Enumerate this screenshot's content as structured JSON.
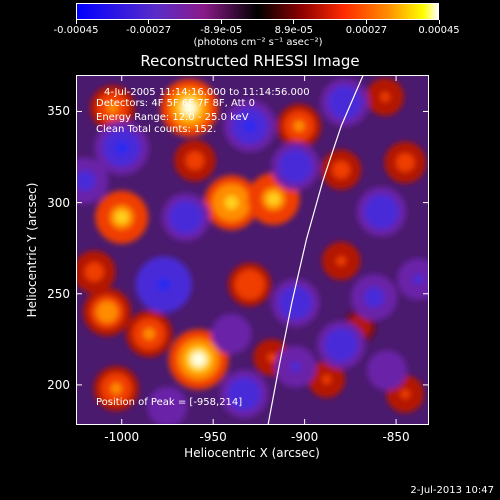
{
  "colorbar": {
    "ticks": [
      "-0.00045",
      "-0.00027",
      "-8.9e-05",
      "8.9e-05",
      "0.00027",
      "0.00045"
    ],
    "units": "(photons cm⁻² s⁻¹ asec⁻²)",
    "colors": [
      "#0000ff",
      "#8a1a8a",
      "#000000",
      "#ff2a00",
      "#ffff00",
      "#ffffff"
    ]
  },
  "info": {
    "time_range": "4-Jul-2005 11:14:16.000 to 11:14:56.000",
    "detectors": "Detectors: 4F 5F 6F 7F 8F, Att 0",
    "energy": "Energy Range: 12.0 - 25.0 keV",
    "clean": "Clean    Total counts: 152.",
    "peak": "Position of Peak = [-958,214]"
  },
  "timestamp": "2-Jul-2013 10:47",
  "chart_data": {
    "type": "heatmap",
    "title": "Reconstructed RHESSI Image",
    "xlabel": "Heliocentric X (arcsec)",
    "ylabel": "Heliocentric Y (arcsec)",
    "xlim": [
      -1025,
      -832
    ],
    "ylim": [
      178,
      370
    ],
    "xticks": [
      -1000,
      -950,
      -900,
      -850
    ],
    "yticks": [
      200,
      250,
      300,
      350
    ],
    "xtick_labels": [
      "-1000",
      "-950",
      "-900",
      "-850"
    ],
    "ytick_labels": [
      "200",
      "250",
      "300",
      "350"
    ],
    "value_range": [
      -0.00045,
      0.00045
    ],
    "peak_position": [
      -958,
      214
    ],
    "limb_curve": {
      "x": [
        -920,
        -914,
        -907,
        -899,
        -890,
        -880,
        -868
      ],
      "y": [
        178,
        210,
        245,
        280,
        312,
        342,
        370
      ]
    },
    "sources": [
      {
        "x": -958,
        "y": 214,
        "value": 0.00045
      },
      {
        "x": -963,
        "y": 352,
        "value": 0.00042
      },
      {
        "x": -1000,
        "y": 292,
        "value": 0.00036
      },
      {
        "x": -940,
        "y": 300,
        "value": 0.00038
      },
      {
        "x": -917,
        "y": 302,
        "value": 0.00035
      },
      {
        "x": -1008,
        "y": 240,
        "value": 0.0003
      },
      {
        "x": -985,
        "y": 228,
        "value": 0.00028
      },
      {
        "x": -1003,
        "y": 198,
        "value": 0.00026
      },
      {
        "x": -930,
        "y": 255,
        "value": 0.00024
      },
      {
        "x": -903,
        "y": 342,
        "value": 0.00025
      },
      {
        "x": -880,
        "y": 318,
        "value": 0.0002
      },
      {
        "x": -880,
        "y": 268,
        "value": 0.00018
      },
      {
        "x": -845,
        "y": 322,
        "value": 0.00022
      },
      {
        "x": -1005,
        "y": 352,
        "value": 0.00026
      },
      {
        "x": -856,
        "y": 358,
        "value": 0.00017
      },
      {
        "x": -960,
        "y": 323,
        "value": 0.00022
      },
      {
        "x": -1015,
        "y": 262,
        "value": 0.00023
      },
      {
        "x": -888,
        "y": 203,
        "value": 0.00016
      },
      {
        "x": -845,
        "y": 195,
        "value": 0.00017
      },
      {
        "x": -918,
        "y": 215,
        "value": 0.00016
      },
      {
        "x": -870,
        "y": 232,
        "value": 0.00012
      },
      {
        "x": -977,
        "y": 255,
        "value": -0.0004
      },
      {
        "x": -965,
        "y": 292,
        "value": -0.0003
      },
      {
        "x": -1000,
        "y": 330,
        "value": -0.00038
      },
      {
        "x": -930,
        "y": 342,
        "value": -0.00035
      },
      {
        "x": -905,
        "y": 320,
        "value": -0.0003
      },
      {
        "x": -878,
        "y": 355,
        "value": -0.0003
      },
      {
        "x": -858,
        "y": 295,
        "value": -0.00032
      },
      {
        "x": -905,
        "y": 245,
        "value": -0.0003
      },
      {
        "x": -862,
        "y": 248,
        "value": -0.00028
      },
      {
        "x": -880,
        "y": 222,
        "value": -0.0003
      },
      {
        "x": -905,
        "y": 210,
        "value": -0.00022
      },
      {
        "x": -933,
        "y": 195,
        "value": -0.0003
      },
      {
        "x": -1020,
        "y": 312,
        "value": -0.00028
      },
      {
        "x": -975,
        "y": 188,
        "value": -0.0002
      },
      {
        "x": -940,
        "y": 228,
        "value": -0.0002
      },
      {
        "x": -838,
        "y": 258,
        "value": -0.00022
      },
      {
        "x": -855,
        "y": 208,
        "value": -0.0002
      }
    ]
  }
}
